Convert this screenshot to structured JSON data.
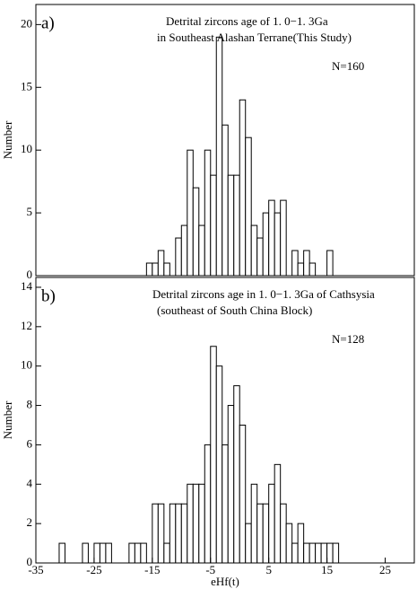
{
  "chart_data": [
    {
      "type": "histogram",
      "panel_label": "a)",
      "title": [
        "Detrital zircons age of 1. 0−1. 3Ga",
        "in Southeast Alashan Terrane(This Study)"
      ],
      "annotation": "N=160",
      "ylabel": "Number",
      "color": "#ffffff",
      "edgecolor": "#000000",
      "bins": [
        -16,
        -15,
        -14,
        -13,
        -12,
        -11,
        -10,
        -9,
        -8,
        -7,
        -6,
        -5,
        -4,
        -3,
        -2,
        -1,
        0,
        1,
        2,
        3,
        4,
        5,
        6,
        7,
        8,
        9,
        10,
        11,
        12,
        13,
        14,
        15,
        16
      ],
      "values": [
        1,
        1,
        2,
        1,
        0,
        3,
        4,
        10,
        7,
        4,
        10,
        8,
        19,
        12,
        8,
        8,
        14,
        11,
        4,
        3,
        5,
        6,
        5,
        6,
        0,
        2,
        1,
        2,
        1,
        0,
        0,
        2
      ],
      "xlim": [
        -35,
        30
      ],
      "ylim": [
        0,
        21.6
      ],
      "yticks": [
        0,
        5,
        10,
        15,
        20
      ]
    },
    {
      "type": "histogram",
      "panel_label": "b)",
      "title": [
        "Detrital zircons age in 1. 0−1. 3Ga of Cathsysia",
        "(southeast of South China Block)"
      ],
      "annotation": "N=128",
      "ylabel": "Number",
      "xlabel": "eHf(t)",
      "color": "#ffffff",
      "edgecolor": "#000000",
      "bins": [
        -31,
        -30,
        -29,
        -28,
        -27,
        -26,
        -25,
        -24,
        -23,
        -22,
        -21,
        -20,
        -19,
        -18,
        -17,
        -16,
        -15,
        -14,
        -13,
        -12,
        -11,
        -10,
        -9,
        -8,
        -7,
        -6,
        -5,
        -4,
        -3,
        -2,
        -1,
        0,
        1,
        2,
        3,
        4,
        5,
        6,
        7,
        8,
        9,
        10,
        11,
        12,
        13,
        14,
        15,
        16,
        17
      ],
      "values": [
        1,
        0,
        0,
        0,
        1,
        0,
        1,
        1,
        1,
        0,
        0,
        0,
        1,
        1,
        1,
        0,
        3,
        3,
        1,
        3,
        3,
        3,
        4,
        4,
        4,
        6,
        11,
        10,
        6,
        8,
        9,
        7,
        2,
        4,
        3,
        3,
        4,
        5,
        3,
        2,
        1,
        2,
        1,
        1,
        1,
        1,
        1,
        1
      ],
      "xlim": [
        -35,
        30
      ],
      "ylim": [
        0,
        14.5
      ],
      "yticks": [
        0,
        2,
        4,
        6,
        8,
        10,
        12,
        14
      ],
      "xticks": [
        -35,
        -25,
        -15,
        -5,
        5,
        15,
        25
      ]
    }
  ]
}
